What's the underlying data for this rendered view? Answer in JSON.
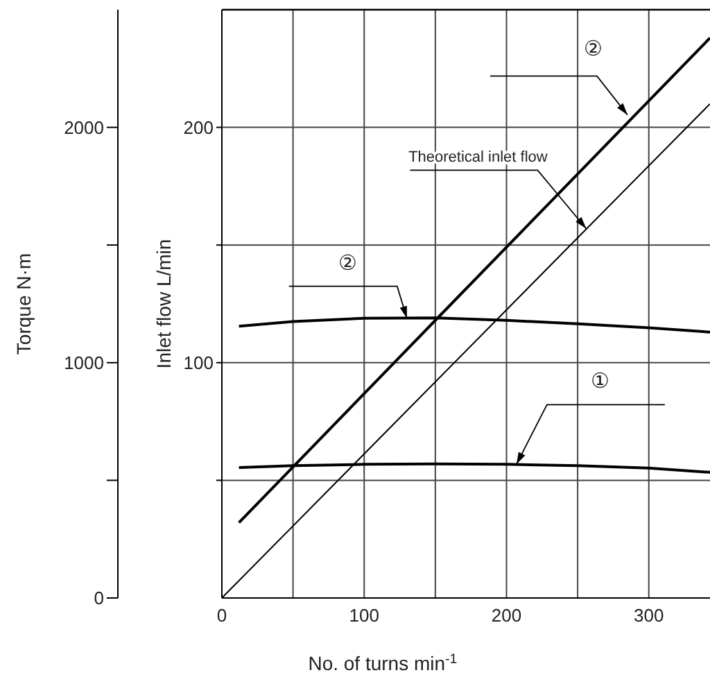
{
  "chart_data": {
    "type": "line",
    "xlabel": "No. of turns min$^{-1}$",
    "ylabel": "Torque N·m",
    "y2label": "Inlet flow L/min",
    "xlim": [
      0,
      343
    ],
    "xticks": [
      0,
      {
        "value": 50,
        "label": null
      },
      100,
      {
        "value": 150,
        "label": null
      },
      200,
      {
        "value": 250,
        "label": null
      },
      300
    ],
    "ylim": [
      0,
      2500
    ],
    "yticks": [
      0,
      {
        "value": 500,
        "label": null
      },
      1000,
      {
        "value": 1500,
        "label": null
      },
      2000
    ],
    "y2lim": [
      0,
      250
    ],
    "y2ticks": [
      {
        "value": 50,
        "label": null
      },
      100,
      {
        "value": 150,
        "label": null
      },
      200
    ],
    "grid": true,
    "marker": "none",
    "series": [
      {
        "axis": "y2",
        "color": "#000000",
        "x": [
          0,
          343
        ],
        "values": [
          0,
          210
        ]
      },
      {
        "axis": "y2",
        "color": "#000000",
        "x": [
          12,
          150,
          343
        ],
        "values": [
          32,
          118,
          238
        ]
      },
      {
        "color": "#000000",
        "x": [
          12,
          50,
          100,
          150,
          200,
          250,
          300,
          343
        ],
        "values": [
          1155,
          1175,
          1189,
          1190,
          1180,
          1165,
          1148,
          1130
        ]
      },
      {
        "color": "#000000",
        "x": [
          12,
          50,
          100,
          150,
          200,
          250,
          300,
          343
        ],
        "values": [
          554,
          562,
          568,
          570,
          568,
          562,
          552,
          534
        ]
      }
    ],
    "annotations": [
      {
        "text": "②",
        "x": 285,
        "y": 2053
      },
      {
        "text": "Theoretical inlet flow",
        "x": 256,
        "y": 1570
      },
      {
        "text": "②",
        "x": 130,
        "y": 1189
      },
      {
        "text": "①",
        "x": 207,
        "y": 568
      }
    ]
  }
}
